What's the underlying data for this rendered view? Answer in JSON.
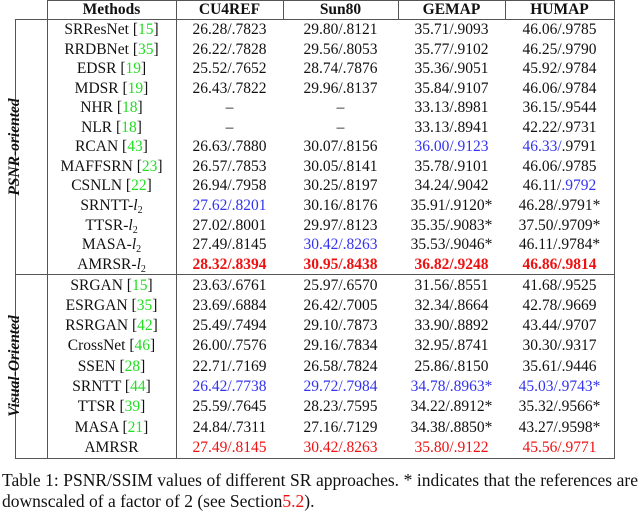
{
  "table": {
    "headers": [
      "Methods",
      "CU4REF",
      "Sun80",
      "GEMAP",
      "HUMAP"
    ],
    "groups": [
      {
        "label": "PSNR-oriented",
        "rows": [
          {
            "method": "SRResNet",
            "ref": "15",
            "values": [
              "26.28/.7823",
              "29.80/.8121",
              "35.71/.9093",
              "46.06/.9785"
            ]
          },
          {
            "method": "RRDBNet",
            "ref": "35",
            "values": [
              "26.22/.7828",
              "29.56/.8053",
              "35.77/.9102",
              "46.25/.9790"
            ]
          },
          {
            "method": "EDSR",
            "ref": "19",
            "values": [
              "25.52/.7652",
              "28.74/.7876",
              "35.36/.9051",
              "45.92/.9784"
            ]
          },
          {
            "method": "MDSR",
            "ref": "19",
            "values": [
              "26.43/.7822",
              "29.96/.8137",
              "35.84/.9107",
              "46.06/.9784"
            ]
          },
          {
            "method": "NHR",
            "ref": "18",
            "values": [
              "–",
              "–",
              "33.13/.8981",
              "36.15/.9544"
            ]
          },
          {
            "method": "NLR",
            "ref": "18",
            "values": [
              "–",
              "–",
              "33.13/.8941",
              "42.22/.9731"
            ]
          },
          {
            "method": "RCAN",
            "ref": "43",
            "values": [
              "26.63/.7880",
              "30.07/.8156",
              "36.00/.9123",
              "46.33/.9791"
            ],
            "highlight": {
              "GEMAP": "blue",
              "HUMAP_psnr": "blue"
            }
          },
          {
            "method": "MAFFSRN",
            "ref": "23",
            "values": [
              "26.57/.7853",
              "30.05/.8141",
              "35.78/.9101",
              "46.06/.9785"
            ]
          },
          {
            "method": "CSNLN",
            "ref": "22",
            "values": [
              "26.94/.7958",
              "30.25/.8197",
              "34.24/.9042",
              "46.11/.9792"
            ],
            "highlight": {
              "HUMAP_ssim": "blue"
            }
          },
          {
            "method": "SRNTT-",
            "subscript": "2",
            "values": [
              "27.62/.8201",
              "30.16/.8176",
              "35.91/.9120*",
              "46.28/.9791*"
            ],
            "highlight": {
              "CU4REF": "blue"
            }
          },
          {
            "method": "TTSR-",
            "subscript": "2",
            "values": [
              "27.02/.8001",
              "29.97/.8123",
              "35.35/.9083*",
              "37.50/.9709*"
            ]
          },
          {
            "method": "MASA-",
            "subscript": "2",
            "values": [
              "27.49/.8145",
              "30.42/.8263",
              "35.53/.9046*",
              "46.11/.9784*"
            ],
            "highlight": {
              "Sun80": "blue"
            }
          },
          {
            "method": "AMRSR-",
            "subscript": "2",
            "values": [
              "28.32/.8394",
              "30.95/.8438",
              "36.82/.9248",
              "46.86/.9814"
            ],
            "highlight": {
              "all": "red-bold"
            }
          }
        ]
      },
      {
        "label": "Visual-Oriented",
        "rows": [
          {
            "method": "SRGAN",
            "ref": "15",
            "values": [
              "23.63/.6761",
              "25.97/.6570",
              "31.56/.8551",
              "41.68/.9525"
            ]
          },
          {
            "method": "ESRGAN",
            "ref": "35",
            "values": [
              "23.69/.6884",
              "26.42/.7005",
              "32.34/.8664",
              "42.78/.9669"
            ]
          },
          {
            "method": "RSRGAN",
            "ref": "42",
            "values": [
              "25.49/.7494",
              "29.10/.7873",
              "33.90/.8892",
              "43.44/.9707"
            ]
          },
          {
            "method": "CrossNet",
            "ref": "46",
            "values": [
              "26.00/.7576",
              "29.16/.7834",
              "32.95/.8741",
              "30.30/.9317"
            ]
          },
          {
            "method": "SSEN",
            "ref": "28",
            "values": [
              "22.71/.7169",
              "26.58/.7824",
              "25.86/.8150",
              "35.61/.9446"
            ]
          },
          {
            "method": "SRNTT",
            "ref": "44",
            "values": [
              "26.42/.7738",
              "29.72/.7984",
              "34.78/.8963*",
              "45.03/.9743*"
            ],
            "highlight": {
              "all": "blue"
            }
          },
          {
            "method": "TTSR",
            "ref": "39",
            "values": [
              "25.59/.7645",
              "28.23/.7595",
              "34.22/.8912*",
              "35.32/.9566*"
            ]
          },
          {
            "method": "MASA",
            "ref": "21",
            "values": [
              "24.84/.7311",
              "27.16/.7129",
              "34.38/.8850*",
              "43.27/.9598*"
            ]
          },
          {
            "method": "AMRSR",
            "values": [
              "27.49/.8145",
              "30.42/.8263",
              "35.80/.9122",
              "45.56/.9771"
            ],
            "highlight": {
              "all": "red"
            }
          }
        ]
      }
    ]
  },
  "caption": {
    "prefix": "Table 1: PSNR/SSIM values of different SR approaches. * indicates that the references are downscaled of a factor of 2 (see Section",
    "section_ref": "5.2",
    "suffix": ")."
  },
  "colors": {
    "citation": "#22dd22",
    "second_best": "#3333ee",
    "best": "#ee1111",
    "rule": "#555555"
  }
}
